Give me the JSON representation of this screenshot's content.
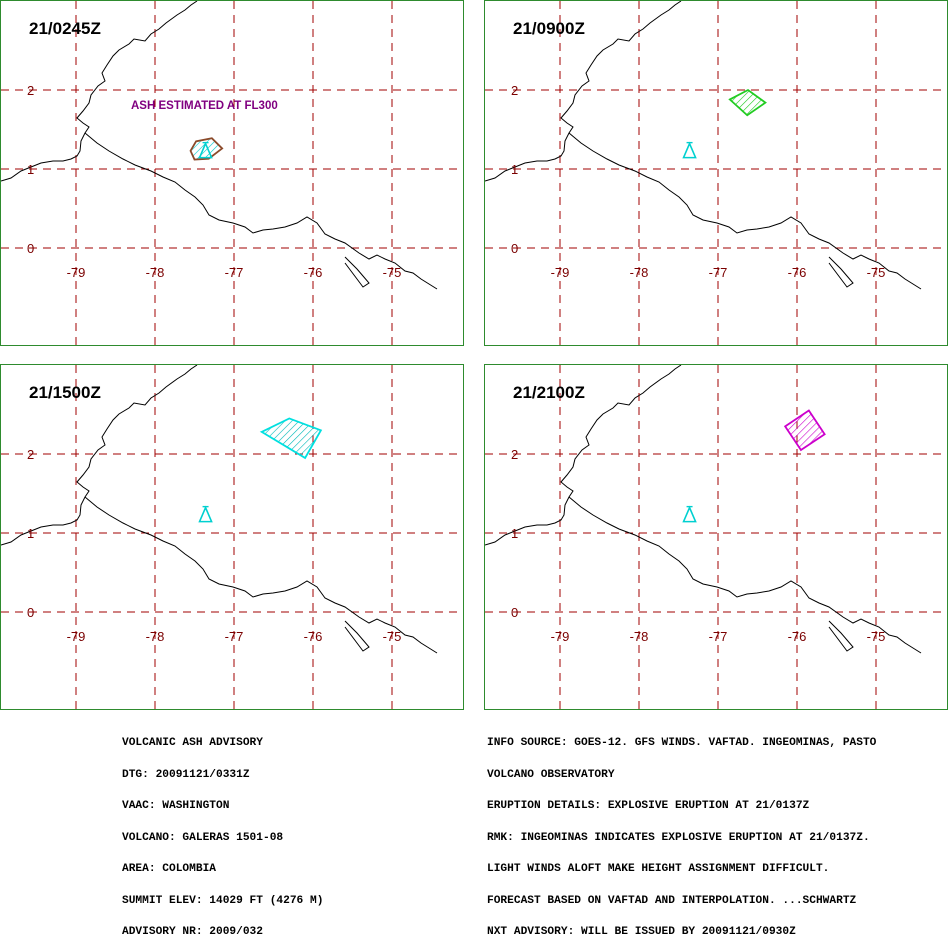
{
  "panels": [
    {
      "time": "21/0245Z",
      "annotation": "ASH ESTIMATED AT FL300",
      "ash": {
        "color": "#8b4a2a",
        "hatch": "#00cccc",
        "polygon": [
          [
            -77.55,
            1.23
          ],
          [
            -77.48,
            1.35
          ],
          [
            -77.28,
            1.39
          ],
          [
            -77.15,
            1.26
          ],
          [
            -77.32,
            1.13
          ],
          [
            -77.5,
            1.12
          ]
        ]
      }
    },
    {
      "time": "21/0900Z",
      "ash": {
        "color": "#22cc22",
        "hatch": "#22cc22",
        "polygon": [
          [
            -76.85,
            1.88
          ],
          [
            -76.62,
            2.0
          ],
          [
            -76.4,
            1.84
          ],
          [
            -76.63,
            1.68
          ]
        ]
      }
    },
    {
      "time": "21/1500Z",
      "ash": {
        "color": "#00e0e0",
        "hatch": "#00b8b8",
        "polygon": [
          [
            -76.65,
            2.28
          ],
          [
            -76.3,
            2.45
          ],
          [
            -75.9,
            2.3
          ],
          [
            -76.1,
            1.95
          ]
        ]
      }
    },
    {
      "time": "21/2100Z",
      "ash": {
        "color": "#cc00cc",
        "hatch": "#cc00cc",
        "polygon": [
          [
            -76.15,
            2.35
          ],
          [
            -75.85,
            2.55
          ],
          [
            -75.65,
            2.25
          ],
          [
            -75.95,
            2.05
          ]
        ]
      }
    }
  ],
  "map": {
    "lon_ticks": [
      "-79",
      "-78",
      "-77",
      "-76",
      "-75"
    ],
    "lat_ticks": [
      "2",
      "1",
      "0"
    ],
    "volcano": {
      "lon": -77.36,
      "lat": 1.22,
      "color": "#00d0d0"
    },
    "grid_color": "#a00000",
    "label_color": "#7a0000",
    "coast_color": "#000000",
    "frame_color": "#2e8b2e"
  },
  "advisory_left": [
    "VOLCANIC ASH ADVISORY",
    "DTG: 20091121/0331Z",
    "VAAC: WASHINGTON",
    "VOLCANO: GALERAS 1501-08",
    "AREA: COLOMBIA",
    "SUMMIT ELEV: 14029 FT (4276 M)",
    "ADVISORY NR: 2009/032"
  ],
  "advisory_right": [
    "INFO SOURCE: GOES-12. GFS WINDS. VAFTAD. INGEOMINAS, PASTO",
    "VOLCANO OBSERVATORY",
    "ERUPTION DETAILS: EXPLOSIVE ERUPTION AT 21/0137Z",
    "RMK: INGEOMINAS INDICATES EXPLOSIVE ERUPTION AT 21/0137Z.",
    "LIGHT WINDS ALOFT MAKE HEIGHT ASSIGNMENT DIFFICULT.",
    "FORECAST BASED ON VAFTAD AND INTERPOLATION. ...SCHWARTZ",
    "NXT ADVISORY: WILL BE ISSUED BY 20091121/0930Z"
  ]
}
